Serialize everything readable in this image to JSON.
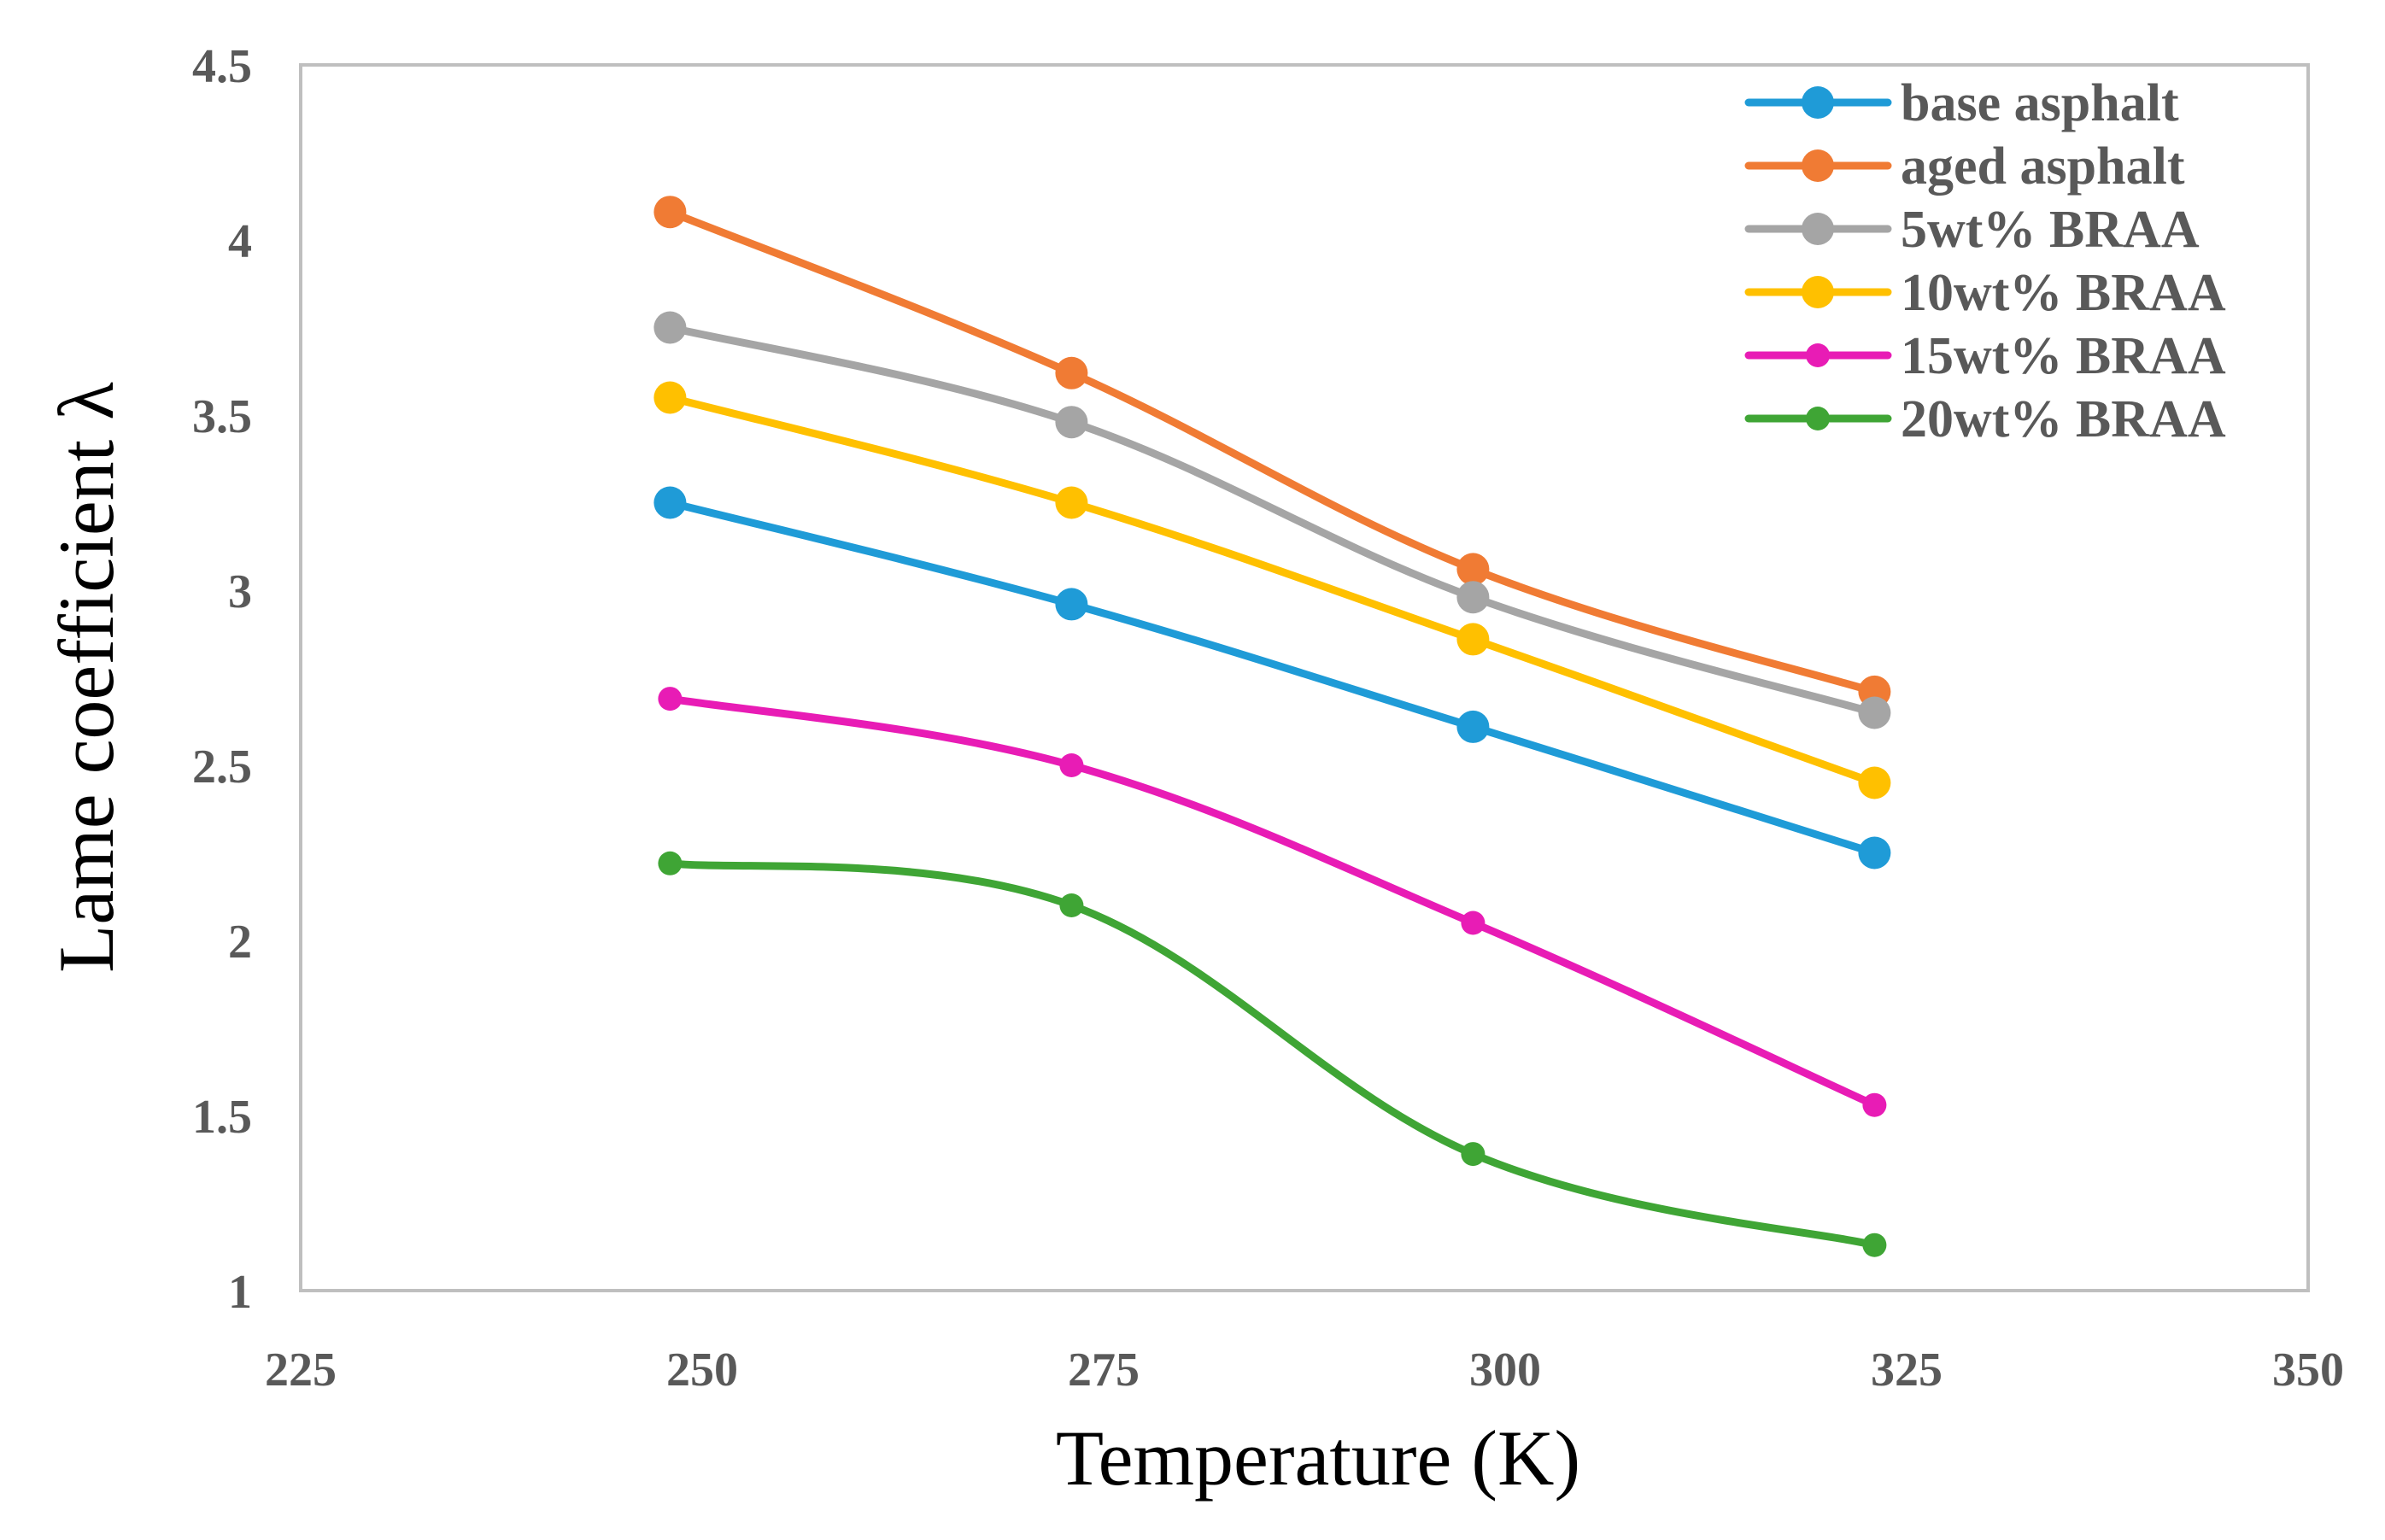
{
  "chart_data": {
    "type": "line",
    "title": "",
    "xlabel": "Temperature (K)",
    "ylabel": "Lame coefficient λ",
    "xlim": [
      225,
      350
    ],
    "ylim": [
      1,
      4.5
    ],
    "xticks": [
      225,
      250,
      275,
      300,
      325,
      350
    ],
    "yticks": [
      1,
      1.5,
      2,
      2.5,
      3,
      3.5,
      4,
      4.5
    ],
    "xtick_labels": [
      "225",
      "250",
      "275",
      "300",
      "325",
      "350"
    ],
    "ytick_labels": [
      "1",
      "1.5",
      "2",
      "2.5",
      "3",
      "3.5",
      "4",
      "4.5"
    ],
    "grid": false,
    "legend_position": "top-right",
    "x": [
      248,
      273,
      298,
      323
    ],
    "series": [
      {
        "name": "base asphalt",
        "color": "#1F9BD7",
        "marker": "large",
        "values": [
          3.25,
          2.96,
          2.61,
          2.25
        ]
      },
      {
        "name": "aged asphalt",
        "color": "#F07B34",
        "marker": "large",
        "values": [
          4.08,
          3.62,
          3.06,
          2.71
        ]
      },
      {
        "name": "5wt% BRAA",
        "color": "#A5A5A5",
        "marker": "large",
        "values": [
          3.75,
          3.48,
          2.98,
          2.65
        ]
      },
      {
        "name": "10wt% BRAA",
        "color": "#FFC000",
        "marker": "large",
        "values": [
          3.55,
          3.25,
          2.86,
          2.45
        ]
      },
      {
        "name": "15wt% BRAA",
        "color": "#E81CB5",
        "marker": "small",
        "values": [
          2.69,
          2.5,
          2.05,
          1.53
        ]
      },
      {
        "name": "20wt% BRAA",
        "color": "#3FA535",
        "marker": "small",
        "values": [
          2.22,
          2.1,
          1.39,
          1.13
        ]
      }
    ]
  }
}
